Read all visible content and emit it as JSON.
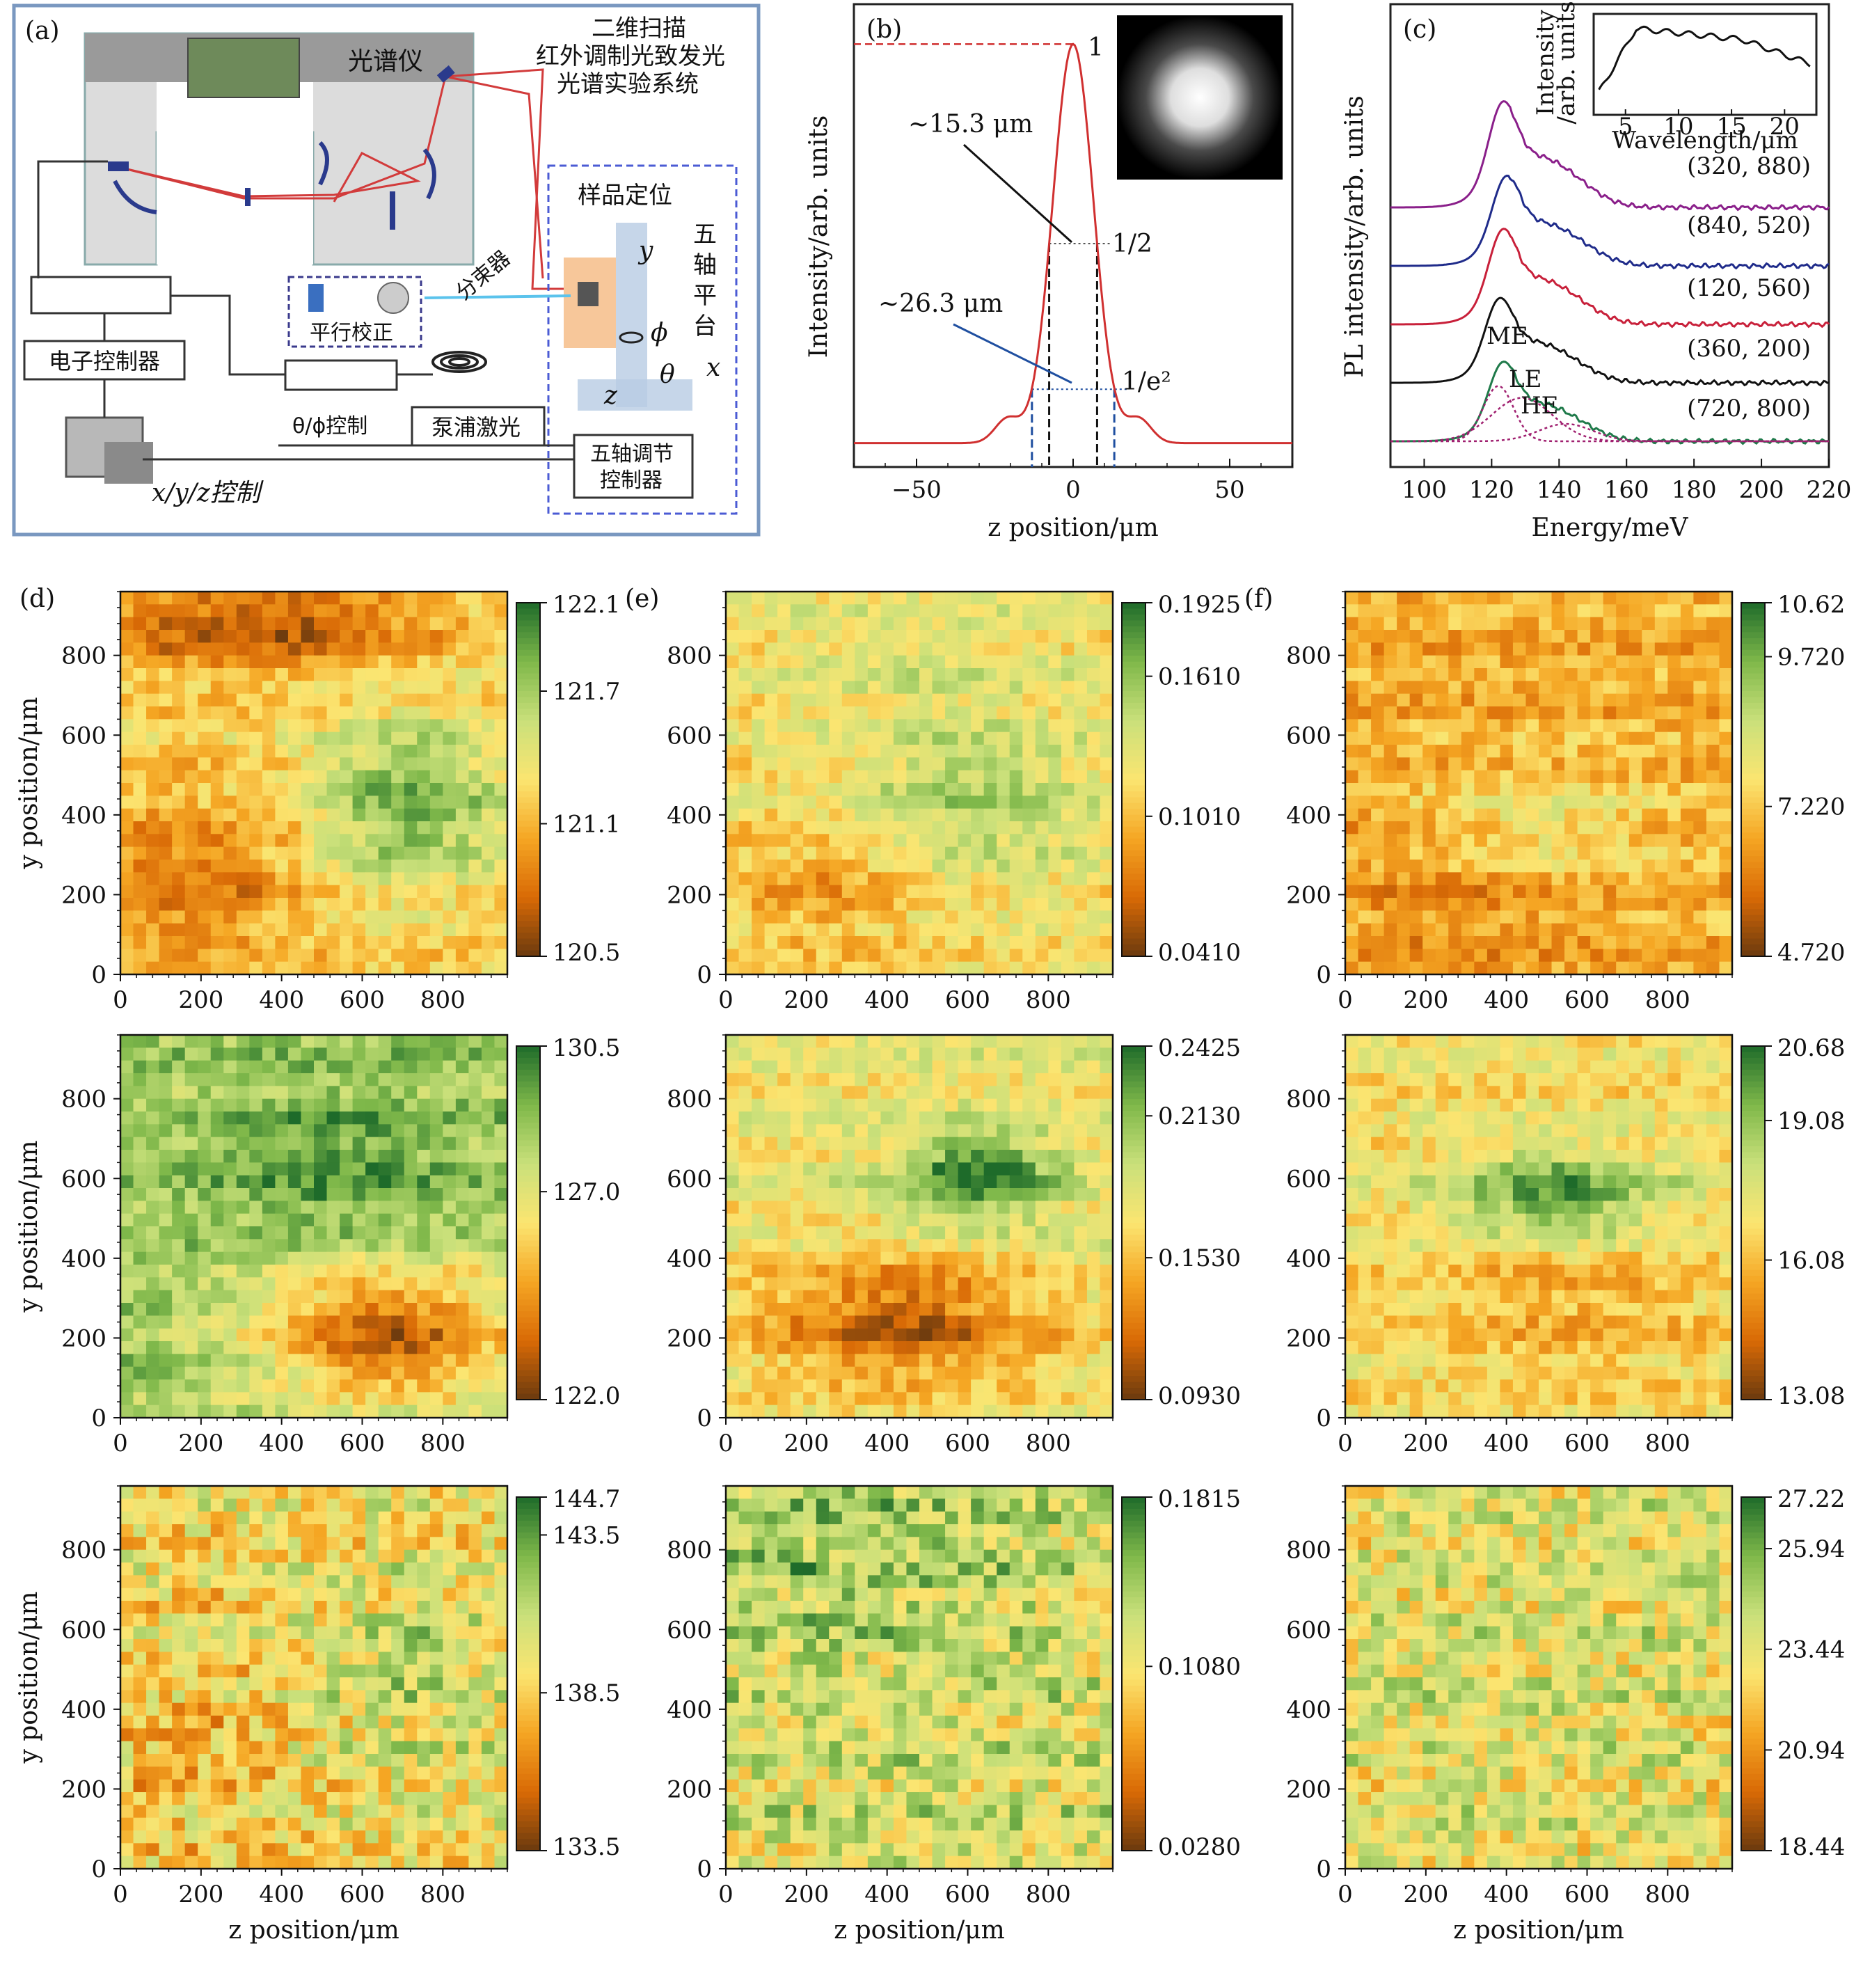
{
  "panel_a": {
    "letter": "(a)",
    "title_lines": [
      "二维扫描",
      "红外调制光致发光",
      "光谱实验系统"
    ],
    "spectrometer": "光谱仪",
    "sample_positioning": "样品定位",
    "five_axis_stage": [
      "五",
      "轴",
      "平",
      "台"
    ],
    "beam_splitter": "分束器",
    "collimation": "平行校正",
    "electronic_controller": "电子控制器",
    "theta_phi_control": "θ/ϕ控制",
    "pump_laser": "泵浦激光",
    "five_axis_controller_lines": [
      "五轴调节",
      "控制器"
    ],
    "xyz_control": "x/y/z控制",
    "axis_y": "y",
    "axis_x": "x",
    "axis_z": "z",
    "axis_phi": "ϕ",
    "axis_theta": "θ",
    "colors": {
      "frame": "#6f8fb8",
      "beam": "#d23b3b",
      "optics": "#2a3a8c",
      "dash": "#4b5bd4"
    }
  },
  "chart_data": [
    {
      "id": "b",
      "letter": "(b)",
      "type": "line",
      "ylabel": "Intensity/arb. units",
      "xlabel": "z position/μm",
      "xlim": [
        -70,
        70
      ],
      "xticks": [
        -50,
        0,
        50
      ],
      "xtick_labels": [
        "−50",
        "0",
        "50"
      ],
      "ylim": [
        -0.06,
        1.1
      ],
      "annotations": {
        "peak": "1",
        "half": "1/2",
        "e2": "1/e²",
        "fwhm": "~15.3 μm",
        "e2width": "~26.3 μm"
      },
      "profile": {
        "amplitude": 1.0,
        "fwhm": 15.3,
        "e2_width": 26.3,
        "baseline": 0.0,
        "side_lobe_z": 21,
        "side_lobe_height": 0.06
      },
      "series_color": "#d03030",
      "inset": "gaussian beam spot image"
    },
    {
      "id": "c",
      "letter": "(c)",
      "type": "line",
      "ylabel": "PL intensity/arb. units",
      "xlabel": "Energy/meV",
      "xlim": [
        90,
        220
      ],
      "xticks": [
        100,
        120,
        140,
        160,
        180,
        200,
        220
      ],
      "series": [
        {
          "label": "(320, 880)",
          "color": "#8a1f8a",
          "offset": 4,
          "peak": 123,
          "width": 1.0
        },
        {
          "label": "(840, 520)",
          "color": "#1f2b8a",
          "offset": 3,
          "peak": 124,
          "width": 0.85
        },
        {
          "label": "(120, 560)",
          "color": "#c8203a",
          "offset": 2,
          "peak": 123,
          "width": 0.9
        },
        {
          "label": "(360, 200)",
          "color": "#111111",
          "offset": 1,
          "peak": 122,
          "width": 0.8
        },
        {
          "label": "(720, 800)",
          "color": "#1f7a4a",
          "offset": 0,
          "peak": 123,
          "width": 0.75
        }
      ],
      "components": [
        {
          "label": "ME",
          "center": 129,
          "sigma": 9
        },
        {
          "label": "LE",
          "center": 122,
          "sigma": 4.5
        },
        {
          "label": "HE",
          "center": 142,
          "sigma": 8
        }
      ],
      "component_color": "#a02070",
      "inset": {
        "ylabel_lines": [
          "Intensity",
          "/arb. units"
        ],
        "xlabel": "Wavelength/μm",
        "xticks": [
          5,
          10,
          15,
          20
        ],
        "xlim": [
          2,
          23
        ]
      }
    }
  ],
  "heatmaps": {
    "y_label": "y position/μm",
    "z_label": "z position/μm",
    "ticks": [
      0,
      200,
      400,
      600,
      800
    ],
    "extent": [
      0,
      960
    ],
    "grid": 30,
    "colormap": [
      "#6b3a0e",
      "#d96a06",
      "#f5a623",
      "#fbe571",
      "#c9e07a",
      "#7fb84a",
      "#1e6b2a"
    ],
    "panels": [
      {
        "letter": "(d)",
        "min": 120.5,
        "max": 122.1,
        "ticks": [
          "122.1",
          "121.7",
          "121.1",
          "120.5"
        ],
        "tick_vals": [
          122.1,
          121.7,
          121.1,
          120.5
        ],
        "pattern": "d1"
      },
      {
        "letter": "(e)",
        "min": 0.041,
        "max": 0.1925,
        "ticks": [
          "0.1925",
          "0.1610",
          "0.1010",
          "0.0410"
        ],
        "tick_vals": [
          0.1925,
          0.161,
          0.101,
          0.041
        ],
        "pattern": "e1"
      },
      {
        "letter": "(f)",
        "min": 4.72,
        "max": 10.62,
        "ticks": [
          "10.62",
          "9.720",
          "7.220",
          "4.720"
        ],
        "tick_vals": [
          10.62,
          9.72,
          7.22,
          4.72
        ],
        "pattern": "f1"
      },
      {
        "letter": "",
        "min": 122.0,
        "max": 130.5,
        "ticks": [
          "130.5",
          "127.0",
          "122.0"
        ],
        "tick_vals": [
          130.5,
          127.0,
          122.0
        ],
        "pattern": "d2"
      },
      {
        "letter": "",
        "min": 0.093,
        "max": 0.2425,
        "ticks": [
          "0.2425",
          "0.2130",
          "0.1530",
          "0.0930"
        ],
        "tick_vals": [
          0.2425,
          0.213,
          0.153,
          0.093
        ],
        "pattern": "e2"
      },
      {
        "letter": "",
        "min": 13.08,
        "max": 20.68,
        "ticks": [
          "20.68",
          "19.08",
          "16.08",
          "13.08"
        ],
        "tick_vals": [
          20.68,
          19.08,
          16.08,
          13.08
        ],
        "pattern": "f2"
      },
      {
        "letter": "",
        "min": 133.5,
        "max": 144.7,
        "ticks": [
          "144.7",
          "143.5",
          "138.5",
          "133.5"
        ],
        "tick_vals": [
          144.7,
          143.5,
          138.5,
          133.5
        ],
        "pattern": "d3"
      },
      {
        "letter": "",
        "min": 0.028,
        "max": 0.1815,
        "ticks": [
          "0.1815",
          "0.1080",
          "0.0280"
        ],
        "tick_vals": [
          0.1815,
          0.108,
          0.028
        ],
        "pattern": "e3"
      },
      {
        "letter": "",
        "min": 18.44,
        "max": 27.22,
        "ticks": [
          "27.22",
          "25.94",
          "23.44",
          "20.94",
          "18.44"
        ],
        "tick_vals": [
          27.22,
          25.94,
          23.44,
          20.94,
          18.44
        ],
        "pattern": "f3"
      }
    ]
  }
}
